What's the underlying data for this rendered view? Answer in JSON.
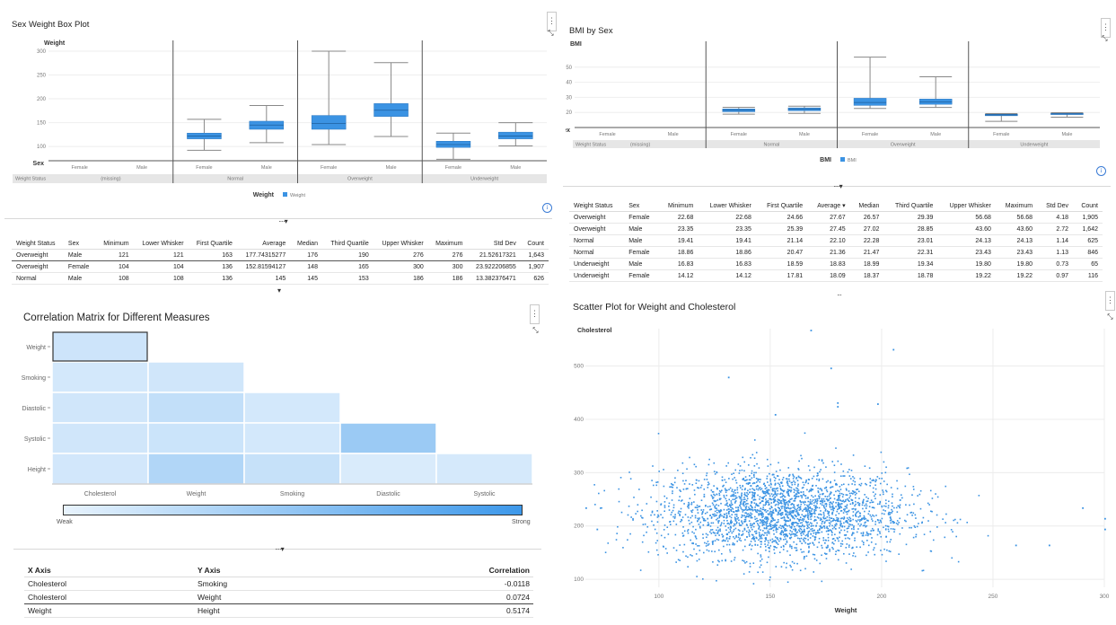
{
  "sex_weight": {
    "title": "Sex Weight Box Plot",
    "y_label": "Weight",
    "x_label": "Sex",
    "group_label": "Weight Status",
    "legend_title": "Weight",
    "legend_item": "Weight",
    "colors": {
      "box": "#3b93e3",
      "band": "#e6e6e6"
    },
    "chart_data": {
      "type": "boxplot",
      "title": "Sex Weight Box Plot",
      "ylabel": "Weight",
      "xlabel": "Sex",
      "ylim": [
        70,
        300
      ],
      "yticks": [
        100,
        150,
        200,
        250,
        300
      ],
      "groups": [
        {
          "name": "(missing)",
          "items": [
            {
              "sex": "Female",
              "stats": null
            },
            {
              "sex": "Male",
              "stats": null
            }
          ]
        },
        {
          "name": "Normal",
          "items": [
            {
              "sex": "Female",
              "stats": {
                "min": 92,
                "q1": 116,
                "median": 122,
                "q3": 128,
                "max": 157
              }
            },
            {
              "sex": "Male",
              "stats": {
                "min": 108,
                "q1": 136,
                "median": 145,
                "q3": 153,
                "max": 186
              }
            }
          ]
        },
        {
          "name": "Overweight",
          "items": [
            {
              "sex": "Female",
              "stats": {
                "min": 104,
                "q1": 136,
                "median": 148,
                "q3": 165,
                "max": 300
              }
            },
            {
              "sex": "Male",
              "stats": {
                "min": 121,
                "q1": 163,
                "median": 176,
                "q3": 190,
                "max": 276
              }
            }
          ]
        },
        {
          "name": "Underweight",
          "items": [
            {
              "sex": "Female",
              "stats": {
                "min": 73,
                "q1": 98,
                "median": 104,
                "q3": 111,
                "max": 128
              }
            },
            {
              "sex": "Male",
              "stats": {
                "min": 101,
                "q1": 116,
                "median": 122,
                "q3": 130,
                "max": 150
              }
            }
          ]
        }
      ]
    }
  },
  "weight_table": {
    "headers": [
      "Weight Status",
      "Sex",
      "Minimum",
      "Lower Whisker",
      "First Quartile",
      "Average",
      "Median",
      "Third Quartile",
      "Upper Whisker",
      "Maximum",
      "Std Dev",
      "Count"
    ],
    "rows": [
      [
        "Overweight",
        "Male",
        "121",
        "121",
        "163",
        "177.74315277",
        "176",
        "190",
        "276",
        "276",
        "21.52617321",
        "1,643"
      ],
      [
        "Overweight",
        "Female",
        "104",
        "104",
        "136",
        "152.81594127",
        "148",
        "165",
        "300",
        "300",
        "23.922206855",
        "1,907"
      ],
      [
        "Normal",
        "Male",
        "108",
        "108",
        "136",
        "145",
        "145",
        "153",
        "186",
        "186",
        "13.382376471",
        "626"
      ]
    ]
  },
  "bmi": {
    "title": "BMI by Sex",
    "y_label": "BMI",
    "x_label": "Sex",
    "group_label": "Weight Status",
    "legend_title": "BMI",
    "legend_item": "BMI",
    "chart_data": {
      "type": "boxplot",
      "title": "BMI by Sex",
      "ylabel": "BMI",
      "xlabel": "Sex",
      "ylim": [
        10,
        60
      ],
      "yticks": [
        20,
        30,
        40,
        50
      ],
      "groups": [
        {
          "name": "(missing)",
          "items": [
            {
              "sex": "Female",
              "stats": null
            },
            {
              "sex": "Male",
              "stats": null
            }
          ]
        },
        {
          "name": "Normal",
          "items": [
            {
              "sex": "Female",
              "stats": {
                "min": 18.86,
                "q1": 20.47,
                "median": 21.47,
                "q3": 22.31,
                "max": 23.43
              }
            },
            {
              "sex": "Male",
              "stats": {
                "min": 19.41,
                "q1": 21.14,
                "median": 22.28,
                "q3": 23.01,
                "max": 24.13
              }
            }
          ]
        },
        {
          "name": "Overweight",
          "items": [
            {
              "sex": "Female",
              "stats": {
                "min": 22.68,
                "q1": 24.66,
                "median": 26.57,
                "q3": 29.39,
                "max": 56.68
              }
            },
            {
              "sex": "Male",
              "stats": {
                "min": 23.35,
                "q1": 25.39,
                "median": 27.02,
                "q3": 28.85,
                "max": 43.6
              }
            }
          ]
        },
        {
          "name": "Underweight",
          "items": [
            {
              "sex": "Female",
              "stats": {
                "min": 14.12,
                "q1": 17.81,
                "median": 18.37,
                "q3": 18.78,
                "max": 19.22
              }
            },
            {
              "sex": "Male",
              "stats": {
                "min": 16.83,
                "q1": 18.59,
                "median": 18.99,
                "q3": 19.34,
                "max": 19.8
              }
            }
          ]
        }
      ]
    }
  },
  "bmi_table": {
    "headers": [
      "Weight Status",
      "Sex",
      "Minimum",
      "Lower Whisker",
      "First Quartile",
      "Average ▾",
      "Median",
      "Third Quartile",
      "Upper Whisker",
      "Maximum",
      "Std Dev",
      "Count"
    ],
    "rows": [
      [
        "Overweight",
        "Female",
        "22.68",
        "22.68",
        "24.66",
        "27.67",
        "26.57",
        "29.39",
        "56.68",
        "56.68",
        "4.18",
        "1,905"
      ],
      [
        "Overweight",
        "Male",
        "23.35",
        "23.35",
        "25.39",
        "27.45",
        "27.02",
        "28.85",
        "43.60",
        "43.60",
        "2.72",
        "1,642"
      ],
      [
        "Normal",
        "Male",
        "19.41",
        "19.41",
        "21.14",
        "22.10",
        "22.28",
        "23.01",
        "24.13",
        "24.13",
        "1.14",
        "625"
      ],
      [
        "Normal",
        "Female",
        "18.86",
        "18.86",
        "20.47",
        "21.36",
        "21.47",
        "22.31",
        "23.43",
        "23.43",
        "1.13",
        "846"
      ],
      [
        "Underweight",
        "Male",
        "16.83",
        "16.83",
        "18.59",
        "18.83",
        "18.99",
        "19.34",
        "19.80",
        "19.80",
        "0.73",
        "65"
      ],
      [
        "Underweight",
        "Female",
        "14.12",
        "14.12",
        "17.81",
        "18.09",
        "18.37",
        "18.78",
        "19.22",
        "19.22",
        "0.97",
        "116"
      ]
    ]
  },
  "corr": {
    "title": "Correlation Matrix for Different Measures",
    "legend_low": "Weak",
    "legend_high": "Strong",
    "colors": {
      "low": "#e8f3fd",
      "high": "#3d98ea"
    },
    "chart_data": {
      "type": "heatmap",
      "title": "Correlation Matrix for Different Measures",
      "rows": [
        "Weight",
        "Smoking",
        "Diastolic",
        "Systolic",
        "Height"
      ],
      "cols": [
        "Cholesterol",
        "Weight",
        "Smoking",
        "Diastolic",
        "Systolic"
      ],
      "strength": [
        [
          0.16,
          null,
          null,
          null,
          null
        ],
        [
          0.12,
          0.14,
          null,
          null,
          null
        ],
        [
          0.14,
          0.22,
          0.12,
          null,
          null
        ],
        [
          0.14,
          0.17,
          0.12,
          0.45,
          null
        ],
        [
          0.13,
          0.32,
          0.2,
          0.09,
          0.11
        ]
      ]
    }
  },
  "corr_table": {
    "headers": [
      "X Axis",
      "Y Axis",
      "Correlation"
    ],
    "rows": [
      [
        "Cholesterol",
        "Smoking",
        "-0.0118"
      ],
      [
        "Cholesterol",
        "Weight",
        "0.0724"
      ],
      [
        "Weight",
        "Height",
        "0.5174"
      ]
    ]
  },
  "scatter": {
    "title": "Scatter Plot for Weight and Cholesterol",
    "y_label": "Cholesterol",
    "x_label": "Weight",
    "colors": {
      "point": "#3b93e3"
    },
    "chart_data": {
      "type": "scatter",
      "title": "Scatter Plot for Weight and Cholesterol",
      "xlabel": "Weight",
      "ylabel": "Cholesterol",
      "xlim": [
        67,
        300
      ],
      "ylim": [
        85,
        570
      ],
      "xticks": [
        100,
        150,
        200,
        250,
        300
      ],
      "yticks": [
        100,
        200,
        300,
        400,
        500
      ],
      "center": {
        "x": 155,
        "y": 225
      },
      "spread": {
        "x": 28,
        "y": 42
      },
      "points": [
        {
          "x": 168,
          "y": 568
        },
        {
          "x": 205,
          "y": 532
        },
        {
          "x": 177,
          "y": 497
        },
        {
          "x": 131,
          "y": 480
        },
        {
          "x": 198,
          "y": 430
        },
        {
          "x": 180,
          "y": 432
        },
        {
          "x": 180,
          "y": 425
        },
        {
          "x": 152,
          "y": 410
        },
        {
          "x": 275,
          "y": 165
        },
        {
          "x": 300,
          "y": 215
        },
        {
          "x": 300,
          "y": 195
        },
        {
          "x": 290,
          "y": 235
        },
        {
          "x": 260,
          "y": 165
        },
        {
          "x": 67,
          "y": 235
        },
        {
          "x": 72,
          "y": 195
        }
      ]
    }
  }
}
